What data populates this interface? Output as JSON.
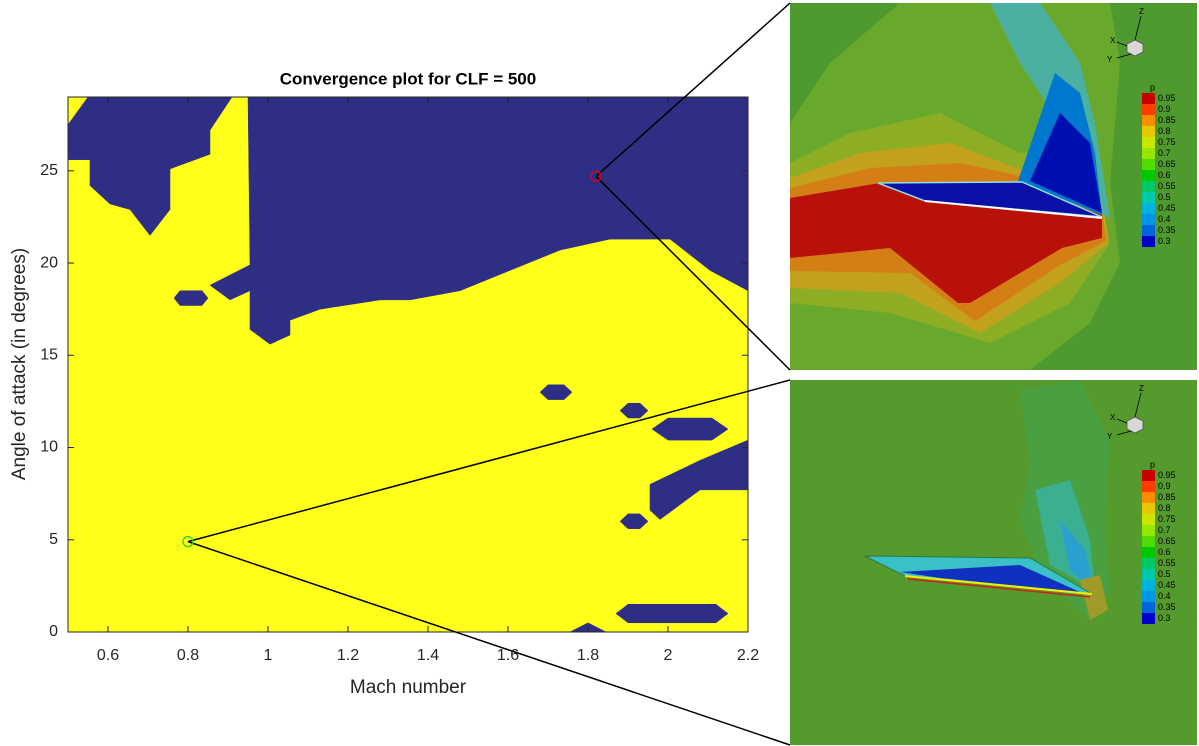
{
  "chart_data": {
    "type": "region",
    "title": "Convergence plot for CLF = 500",
    "x_label": "Mach number",
    "y_label": "Angle of attack (in degrees)",
    "xlim": [
      0.5,
      2.2
    ],
    "ylim": [
      0,
      29
    ],
    "xticks": [
      0.6,
      0.8,
      1,
      1.2,
      1.4,
      1.6,
      1.8,
      2,
      2.2
    ],
    "yticks": [
      0,
      5,
      10,
      15,
      20,
      25
    ],
    "background_color": "#ffff1a",
    "region_color": "#2e2e85",
    "regions": [
      {
        "x": [
          0.95,
          2.2,
          2.2,
          2.105,
          2.005,
          1.855,
          1.73,
          1.605,
          1.48,
          1.355,
          1.28,
          1.13,
          1.055,
          1.055,
          1.005,
          0.955,
          0.955,
          0.905,
          0.855,
          0.955
        ],
        "y": [
          29,
          29,
          18.5,
          19.6,
          21.3,
          21.3,
          20.7,
          19.6,
          18.5,
          18,
          18,
          17.5,
          16.9,
          16.1,
          15.6,
          16.4,
          18.5,
          18,
          18.8,
          19.9
        ]
      },
      {
        "x": [
          0.55,
          0.91,
          0.855,
          0.855,
          0.755,
          0.755,
          0.705,
          0.655,
          0.605,
          0.555,
          0.555,
          0.5,
          0.5
        ],
        "y": [
          29,
          29,
          27.2,
          25.9,
          25.1,
          22.9,
          21.5,
          22.9,
          23.2,
          24.2,
          25.6,
          25.6,
          27.5
        ]
      },
      {
        "x": [
          0.765,
          0.78,
          0.835,
          0.85,
          0.835,
          0.78
        ],
        "y": [
          18.1,
          18.5,
          18.5,
          18.1,
          17.7,
          17.7
        ]
      },
      {
        "x": [
          1.68,
          1.7,
          1.74,
          1.76,
          1.74,
          1.7
        ],
        "y": [
          13,
          13.4,
          13.4,
          13,
          12.6,
          12.6
        ]
      },
      {
        "x": [
          1.88,
          1.9,
          1.93,
          1.95,
          1.93,
          1.9
        ],
        "y": [
          12,
          12.4,
          12.4,
          12,
          11.6,
          11.6
        ]
      },
      {
        "x": [
          1.96,
          2.0,
          2.11,
          2.15,
          2.11,
          2.0
        ],
        "y": [
          11,
          11.6,
          11.6,
          11,
          10.4,
          10.4
        ]
      },
      {
        "x": [
          2.2,
          2.08,
          1.955,
          1.955,
          1.98,
          2.08,
          2.2
        ],
        "y": [
          10.4,
          9.3,
          8,
          6.6,
          6.1,
          7.7,
          7.7
        ]
      },
      {
        "x": [
          1.88,
          1.9,
          1.93,
          1.95,
          1.93,
          1.9
        ],
        "y": [
          6,
          6.4,
          6.4,
          6,
          5.6,
          5.6
        ]
      },
      {
        "x": [
          1.87,
          1.9,
          2.12,
          2.15,
          2.12,
          1.9
        ],
        "y": [
          1,
          1.5,
          1.5,
          1,
          0.5,
          0.5
        ]
      },
      {
        "x": [
          1.755,
          1.8,
          1.845
        ],
        "y": [
          0,
          0.5,
          0
        ]
      }
    ],
    "highlight_x": [
      1.82,
      0.8
    ],
    "highlight_y": [
      24.7,
      4.9
    ],
    "highlight_colors": [
      "#e0000f",
      "#1ed61e"
    ]
  },
  "insets": [
    {
      "colorbar_title": "p",
      "colorbar_ticks": [
        0.95,
        0.9,
        0.85,
        0.8,
        0.75,
        0.7,
        0.65,
        0.6,
        0.55,
        0.5,
        0.45,
        0.4,
        0.35,
        0.3
      ],
      "axis_labels": [
        "X",
        "Y",
        "Z"
      ]
    },
    {
      "colorbar_title": "p",
      "colorbar_ticks": [
        0.95,
        0.9,
        0.85,
        0.8,
        0.75,
        0.7,
        0.65,
        0.6,
        0.55,
        0.5,
        0.45,
        0.4,
        0.35,
        0.3
      ],
      "axis_labels": [
        "X",
        "Y",
        "Z"
      ]
    }
  ]
}
